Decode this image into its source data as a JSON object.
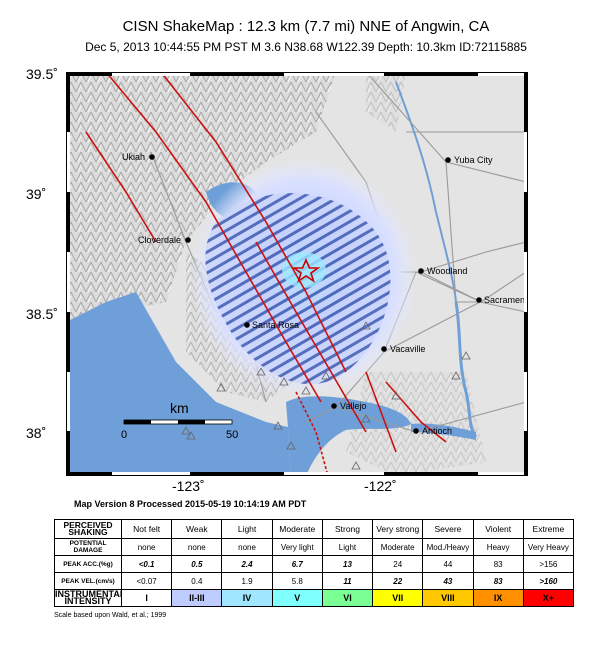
{
  "title": "CISN ShakeMap : 12.3 km (7.7 mi) NNE of Angwin, CA",
  "subtitle": "Dec  5, 2013 10:44:55 PM PST   M 3.6   N38.68 W122.39   Depth: 10.3km   ID:72115885",
  "lat_labels": [
    "39.5˚",
    "39˚",
    "38.5˚",
    "38˚"
  ],
  "lon_labels": [
    "-123˚",
    "-122˚"
  ],
  "cities": {
    "ukiah": "Ukiah",
    "yuba_city": "Yuba City",
    "cloverdale": "Cloverdale",
    "woodland": "Woodland",
    "sacramento": "Sacramento",
    "santa_rosa": "Santa Rosa",
    "vacaville": "Vacaville",
    "vallejo": "Vallejo",
    "antioch": "Antioch"
  },
  "scale_bar": {
    "unit": "km",
    "start": "0",
    "end": "50"
  },
  "version_text": "Map Version 8 Processed 2015-05-19 10:14:19 AM PDT",
  "legend": {
    "rows": [
      {
        "header": "PERCEIVED SHAKING",
        "values": [
          "Not felt",
          "Weak",
          "Light",
          "Moderate",
          "Strong",
          "Very strong",
          "Severe",
          "Violent",
          "Extreme"
        ]
      },
      {
        "header": "POTENTIAL DAMAGE",
        "values": [
          "none",
          "none",
          "none",
          "Very light",
          "Light",
          "Moderate",
          "Mod./Heavy",
          "Heavy",
          "Very Heavy"
        ]
      },
      {
        "header": "PEAK ACC.(%g)",
        "values": [
          "<0.1",
          "0.5",
          "2.4",
          "6.7",
          "13",
          "24",
          "44",
          "83",
          ">156"
        ]
      },
      {
        "header": "PEAK VEL.(cm/s)",
        "values": [
          "<0.07",
          "0.4",
          "1.9",
          "5.8",
          "11",
          "22",
          "43",
          "83",
          ">160"
        ]
      },
      {
        "header": "INSTRUMENTAL INTENSITY",
        "values": [
          "I",
          "II-III",
          "IV",
          "V",
          "VI",
          "VII",
          "VIII",
          "IX",
          "X+"
        ]
      }
    ],
    "intensity_colors": [
      "#ffffff",
      "#bfccff",
      "#a0e6ff",
      "#80ffff",
      "#7aff93",
      "#ffff00",
      "#ffc800",
      "#ff9100",
      "#ff0000"
    ]
  },
  "note": "Scale based upon Wald, et al.; 1999",
  "colors": {
    "water": "#6f9fd8",
    "land": "#e4e4e4",
    "roads": "#9a9a9a",
    "faults": "#cc1111",
    "epicenter_star": "#cc0000",
    "shaking_ellipse": "#bfccff"
  }
}
